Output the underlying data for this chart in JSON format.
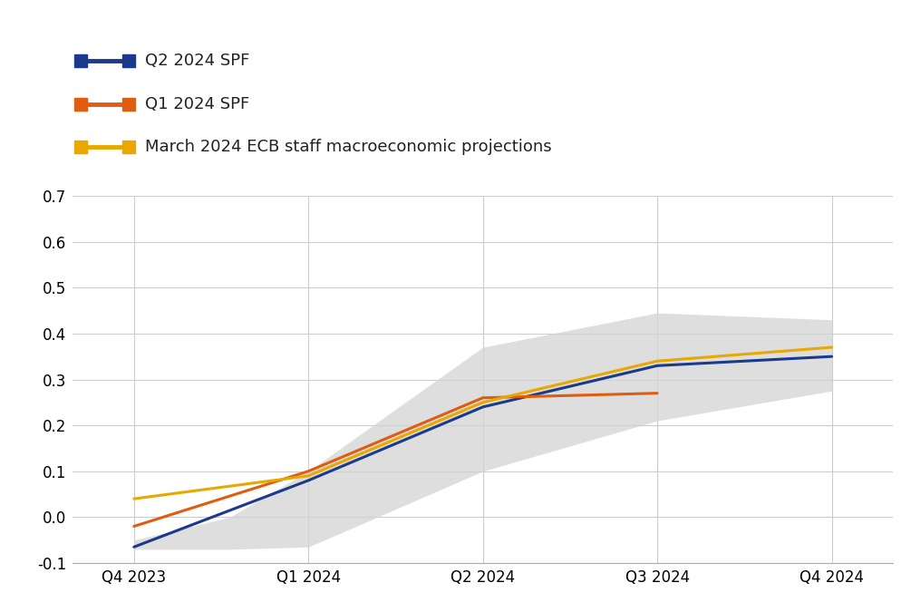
{
  "x_ticks": [
    "Q4 2023",
    "Q1 2024",
    "Q2 2024",
    "Q3 2024",
    "Q4 2024"
  ],
  "x_positions": [
    0,
    1,
    2,
    3,
    4
  ],
  "blue_line": {
    "label": "Q2 2024 SPF",
    "x": [
      0,
      1,
      2,
      3,
      4
    ],
    "y": [
      -0.065,
      0.08,
      0.24,
      0.33,
      0.35
    ],
    "color": "#1a3a8c",
    "linewidth": 2.2
  },
  "orange_line": {
    "label": "Q1 2024 SPF",
    "x": [
      0,
      1,
      2,
      3
    ],
    "y": [
      -0.02,
      0.1,
      0.26,
      0.27
    ],
    "color": "#e05c10",
    "linewidth": 2.2
  },
  "yellow_line": {
    "label": "March 2024 ECB staff macroeconomic projections",
    "x": [
      0,
      1,
      2,
      3,
      4
    ],
    "y": [
      0.04,
      0.09,
      0.25,
      0.34,
      0.37
    ],
    "color": "#e8a800",
    "linewidth": 2.2
  },
  "band": {
    "x": [
      0,
      0.55,
      1,
      2,
      3,
      4
    ],
    "upper": [
      -0.05,
      0.0,
      0.1,
      0.37,
      0.445,
      0.43
    ],
    "lower": [
      -0.07,
      -0.07,
      -0.065,
      0.1,
      0.21,
      0.275
    ],
    "color": "#d3d3d3",
    "alpha": 0.75
  },
  "ylim": [
    -0.1,
    0.7
  ],
  "yticks": [
    -0.1,
    0.0,
    0.1,
    0.2,
    0.3,
    0.4,
    0.5,
    0.6,
    0.7
  ],
  "grid_color": "#cccccc",
  "background_color": "#ffffff",
  "legend_fontsize": 13,
  "tick_fontsize": 12
}
